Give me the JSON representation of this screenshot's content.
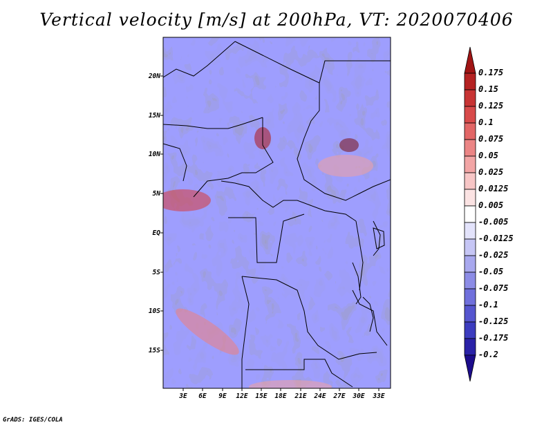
{
  "title": "Vertical velocity [m/s] at 200hPa, VT: 2020070406",
  "credit": "GrADS: IGES/COLA",
  "map": {
    "variable": "Vertical velocity",
    "units": "m/s",
    "level": "200hPa",
    "valid_time": "2020070406",
    "lat_labels": [
      "20N",
      "15N",
      "10N",
      "5N",
      "EQ",
      "5S",
      "10S",
      "15S"
    ],
    "lon_labels": [
      "3E",
      "6E",
      "9E",
      "12E",
      "15E",
      "18E",
      "21E",
      "24E",
      "27E",
      "30E",
      "33E"
    ]
  },
  "colorbar": {
    "labels": [
      "0.175",
      "0.15",
      "0.125",
      "0.1",
      "0.075",
      "0.05",
      "0.025",
      "0.0125",
      "0.005",
      "-0.005",
      "-0.0125",
      "-0.025",
      "-0.05",
      "-0.075",
      "-0.1",
      "-0.125",
      "-0.175",
      "-0.2"
    ],
    "colors": [
      "#a01414",
      "#b52222",
      "#c83434",
      "#d84a4a",
      "#e26666",
      "#eb8585",
      "#f2a5a5",
      "#f7c6c6",
      "#fbe3e3",
      "#ffffff",
      "#e3e3fb",
      "#c6c6f5",
      "#a8a8ee",
      "#8c8ce6",
      "#7070dc",
      "#5555cf",
      "#3c3cbf",
      "#2a22a8",
      "#1c0c8c"
    ]
  }
}
